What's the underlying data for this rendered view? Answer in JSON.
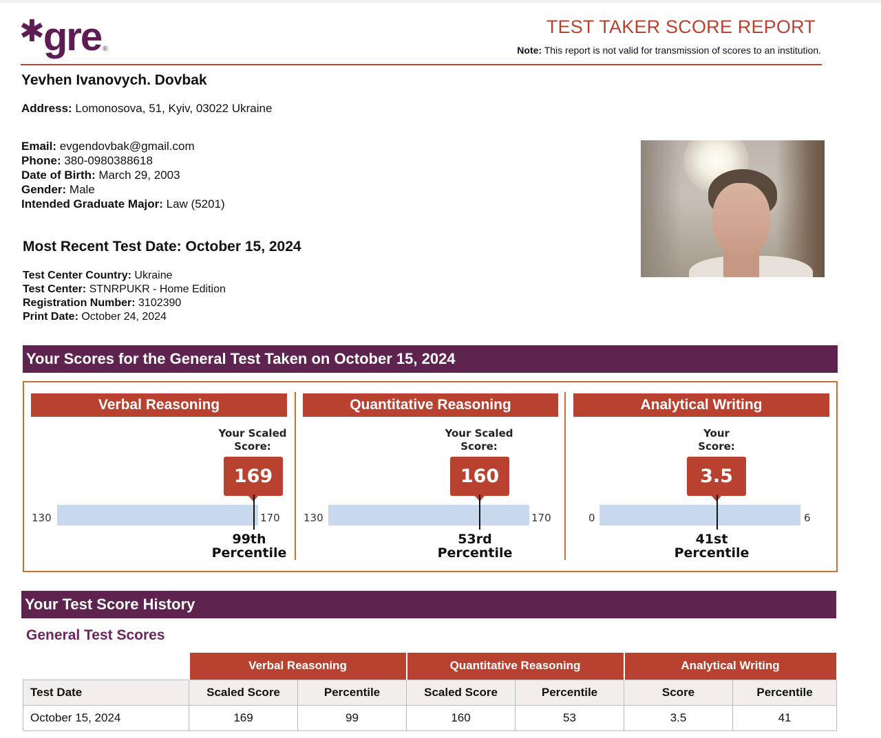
{
  "header": {
    "logo_text": "gre",
    "logo_symbol": "✱",
    "logo_reg": "®",
    "title": "TEST TAKER SCORE REPORT",
    "note_label": "Note:",
    "note_text": " This report is not valid for transmission of scores to an institution."
  },
  "candidate": {
    "name": "Yevhen Ivanovych. Dovbak",
    "address_label": "Address:",
    "address": " Lomonosova, 51, Kyiv, 03022 Ukraine",
    "email_label": "Email:",
    "email": " evgendovbak@gmail.com",
    "phone_label": "Phone:",
    "phone": " 380-0980388618",
    "dob_label": "Date of Birth:",
    "dob": " March 29, 2003",
    "gender_label": "Gender:",
    "gender": " Male",
    "major_label": "Intended Graduate Major:",
    "major": " Law (5201)"
  },
  "test_info": {
    "recent_date": "Most Recent Test Date: October 15, 2024",
    "country_label": "Test Center Country:",
    "country": " Ukraine",
    "center_label": "Test Center:",
    "center": " STNRPUKR - Home Edition",
    "reg_label": "Registration Number:",
    "reg": " 3102390",
    "print_label": "Print Date:",
    "print": " October 24, 2024"
  },
  "scores_section": {
    "title": "Your Scores for the General Test Taken on October 15, 2024",
    "panels": [
      {
        "title": "Verbal Reasoning",
        "label_line1": "Your Scaled",
        "label_line2": "Score:",
        "score": "169",
        "score_fraction": 0.975,
        "min": "130",
        "max": "170",
        "pct_value": "99th",
        "pct_word": "Percentile"
      },
      {
        "title": "Quantitative Reasoning",
        "label_line1": "Your Scaled",
        "label_line2": "Score:",
        "score": "160",
        "score_fraction": 0.75,
        "min": "130",
        "max": "170",
        "pct_value": "53rd",
        "pct_word": "Percentile"
      },
      {
        "title": "Analytical Writing",
        "label_line1": "Your",
        "label_line2": "Score:",
        "score": "3.5",
        "score_fraction": 0.583,
        "min": "0",
        "max": "6",
        "pct_value": "41st",
        "pct_word": "Percentile"
      }
    ]
  },
  "history": {
    "title": "Your Test Score History",
    "subtitle": "General Test Scores",
    "groups": [
      "Verbal Reasoning",
      "Quantitative Reasoning",
      "Analytical Writing"
    ],
    "columns": [
      "Test Date",
      "Scaled Score",
      "Percentile",
      "Scaled Score",
      "Percentile",
      "Score",
      "Percentile"
    ],
    "rows": [
      [
        "October 15, 2024",
        "169",
        "99",
        "160",
        "53",
        "3.5",
        "41"
      ]
    ]
  },
  "colors": {
    "brand_purple": "#5f2350",
    "accent_red": "#b84130",
    "scale_blue": "#c8d9ee"
  }
}
